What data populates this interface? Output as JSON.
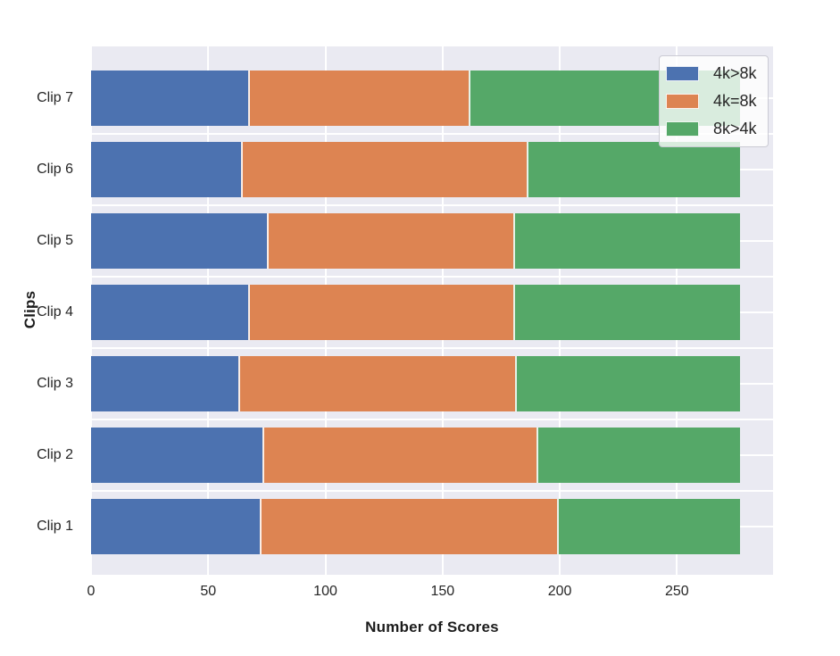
{
  "figure": {
    "background": "#ffffff",
    "plot_background": "#eaeaf2",
    "grid_color": "#ffffff",
    "text_color": "#262626"
  },
  "chart_data": {
    "type": "bar",
    "orientation": "horizontal",
    "stacked": true,
    "title": "",
    "xlabel": "Number of Scores",
    "ylabel": "Clips",
    "categories": [
      "Clip 1",
      "Clip 2",
      "Clip 3",
      "Clip 4",
      "Clip 5",
      "Clip 6",
      "Clip 7"
    ],
    "series": [
      {
        "name": "4k>8k",
        "color": "#4c72b0",
        "values": [
          72,
          73,
          63,
          67,
          75,
          64,
          67
        ]
      },
      {
        "name": "4k=8k",
        "color": "#dd8452",
        "values": [
          127,
          117,
          118,
          113,
          105,
          122,
          94
        ]
      },
      {
        "name": "8k>4k",
        "color": "#55a868",
        "values": [
          78,
          87,
          96,
          97,
          97,
          91,
          116
        ]
      }
    ],
    "totals": [
      277,
      277,
      277,
      277,
      277,
      277,
      277
    ],
    "xlim": [
      0,
      291
    ],
    "xticks": [
      0,
      50,
      100,
      150,
      200,
      250
    ],
    "grid": "on",
    "legend_position": "upper right"
  }
}
